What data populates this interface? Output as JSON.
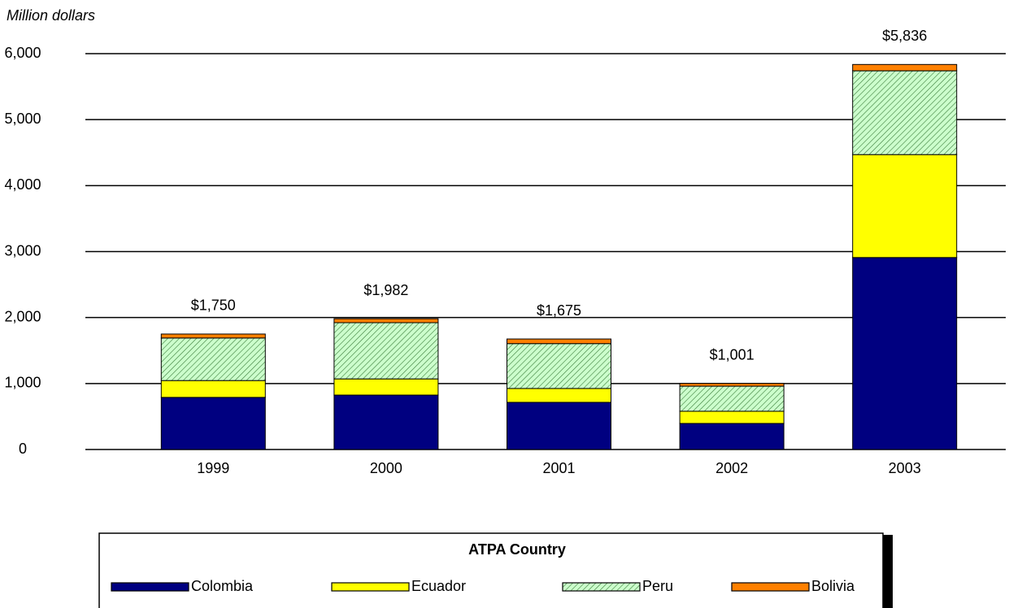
{
  "chart_data": {
    "type": "stacked_bar",
    "y_axis_label": "Million dollars",
    "categories": [
      "1999",
      "2000",
      "2001",
      "2002",
      "2003"
    ],
    "series": [
      {
        "name": "Colombia",
        "color": "#000080",
        "values": [
          790,
          825,
          715,
          395,
          2910
        ]
      },
      {
        "name": "Ecuador",
        "color": "#ffff00",
        "values": [
          255,
          245,
          210,
          185,
          1560
        ]
      },
      {
        "name": "Peru",
        "color": "#ccffcc",
        "pattern": "hatch",
        "values": [
          645,
          852,
          680,
          380,
          1270
        ]
      },
      {
        "name": "Bolivia",
        "color": "#ff8000",
        "values": [
          60,
          60,
          70,
          41,
          96
        ]
      }
    ],
    "totals": [
      1750,
      1982,
      1675,
      1001,
      5836
    ],
    "total_labels": [
      "$1,750",
      "$1,982",
      "$1,675",
      "$1,001",
      "$5,836"
    ],
    "ylim": [
      0,
      6000
    ],
    "yticks": [
      0,
      {
        "value": 1000,
        "label": "1,000"
      },
      {
        "value": 2000,
        "label": "2,000"
      },
      {
        "value": 3000,
        "label": "3,000"
      },
      {
        "value": 4000,
        "label": "4,000"
      },
      {
        "value": 5000,
        "label": "5,000"
      },
      {
        "value": 6000,
        "label": "6,000"
      }
    ],
    "grid": true,
    "legend_title": "ATPA Country",
    "legend": "bottom"
  }
}
